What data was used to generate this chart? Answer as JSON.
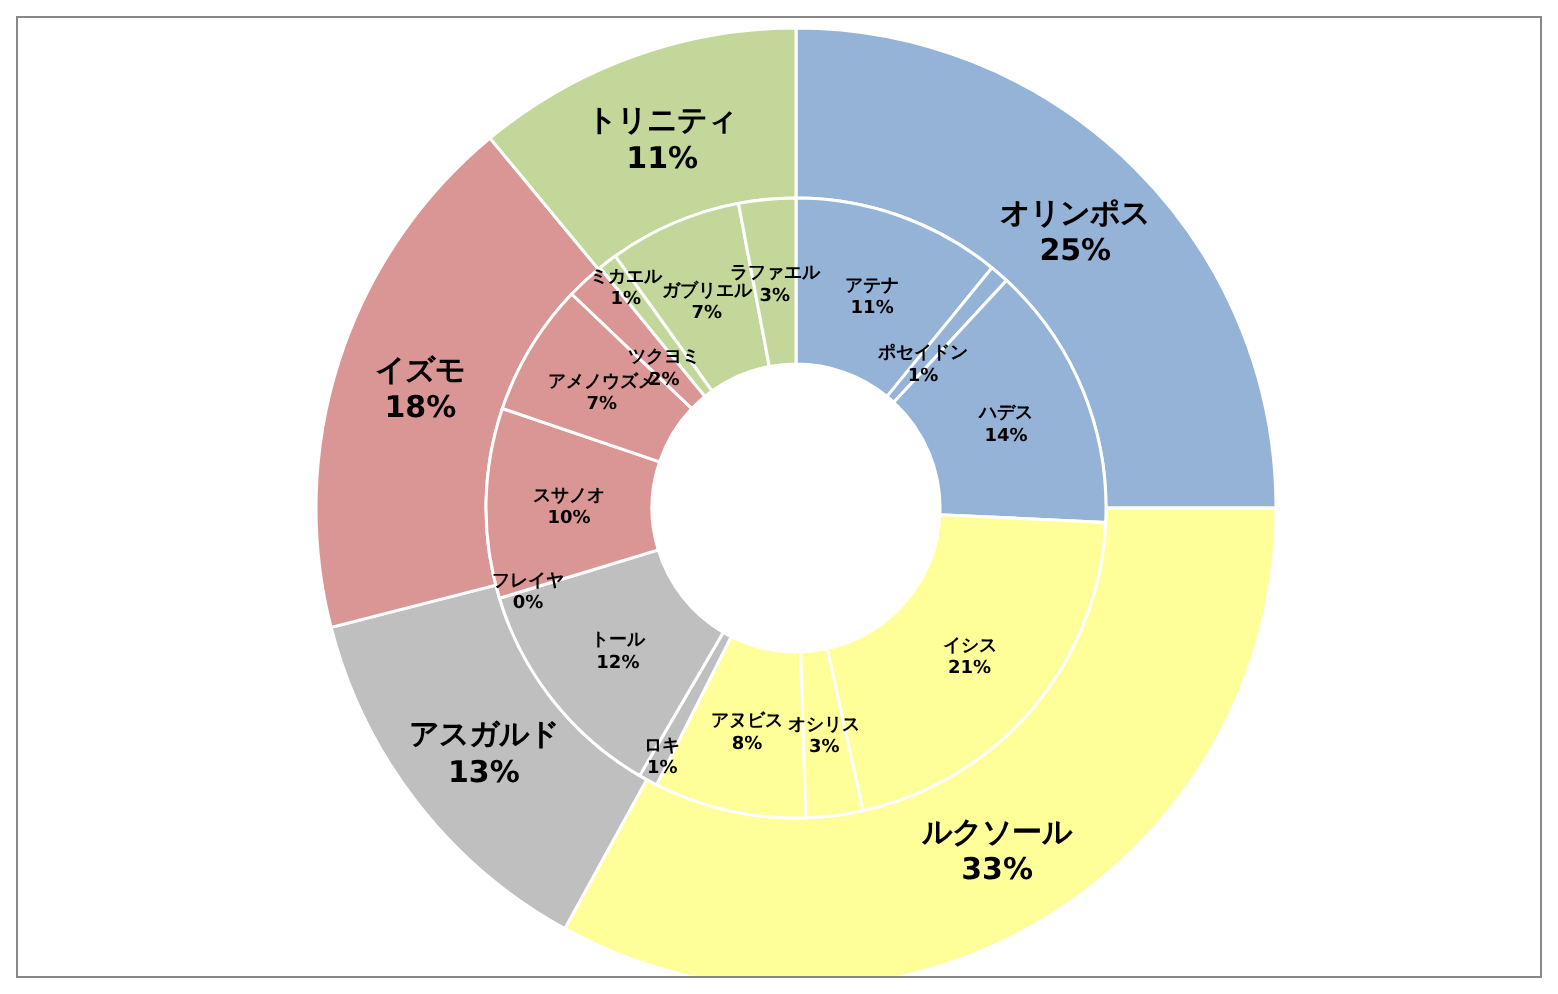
{
  "chart_data": [
    {
      "type": "donut",
      "legend": false,
      "categories": [
        "オリンポス",
        "ルクソール",
        "アスガルド",
        "イズモ",
        "トリニティ"
      ],
      "values": [
        25,
        33,
        13,
        18,
        11
      ],
      "value_labels": [
        "25%",
        "33%",
        "13%",
        "18%",
        "11%"
      ],
      "colors": [
        "#95b3d7",
        "#ffff99",
        "#bfbfbf",
        "#da9694",
        "#c4d79b"
      ]
    },
    {
      "type": "donut",
      "legend": false,
      "categories": [
        "アテナ",
        "ポセイドン",
        "ハデス",
        "イシス",
        "オシリス",
        "アヌビス",
        "ロキ",
        "トール",
        "フレイヤ",
        "スサノオ",
        "アメノウズメ",
        "ツクヨミ",
        "ミカエル",
        "ガブリエル",
        "ラファエル"
      ],
      "values": [
        11,
        1,
        14,
        21,
        3,
        8,
        1,
        12,
        0,
        10,
        7,
        2,
        1,
        7,
        3
      ],
      "value_labels": [
        "11%",
        "1%",
        "14%",
        "21%",
        "3%",
        "8%",
        "1%",
        "12%",
        "0%",
        "10%",
        "7%",
        "2%",
        "1%",
        "7%",
        "3%"
      ],
      "colors": [
        "#95b3d7",
        "#95b3d7",
        "#95b3d7",
        "#ffff99",
        "#ffff99",
        "#ffff99",
        "#bfbfbf",
        "#bfbfbf",
        "#bfbfbf",
        "#da9694",
        "#da9694",
        "#da9694",
        "#c4d79b",
        "#c4d79b",
        "#c4d79b"
      ]
    }
  ]
}
